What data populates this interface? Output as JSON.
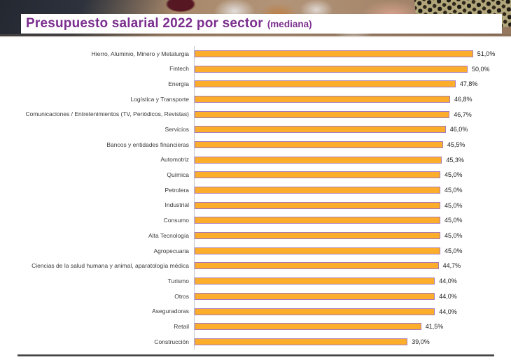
{
  "header": {
    "title": "Presupuesto salarial 2022 por sector",
    "title_suffix": "(mediana)",
    "title_color": "#7B2E8E"
  },
  "chart_data": {
    "type": "bar",
    "orientation": "horizontal",
    "title": "Presupuesto salarial 2022 por sector (mediana)",
    "value_unit": "%",
    "decimal_separator": ",",
    "xlim": [
      0,
      58
    ],
    "grid": false,
    "legend": false,
    "bar_fill_color": "#FBAD2B",
    "bar_border_color": "#A77AB5",
    "categories": [
      "Hierro, Aluminio, Minero y Metalurgia",
      "Fintech",
      "Energía",
      "Logística y Transporte",
      "Comunicaciones / Entretenimientos (TV, Periódicos, Revistas)",
      "Servicios",
      "Bancos y entidades financieras",
      "Automotriz",
      "Química",
      "Petrolera",
      "Industrial",
      "Consumo",
      "Alta Tecnología",
      "Agropecuaria",
      "Ciencias de la salud humana y animal, aparatología médica",
      "Turismo",
      "Otros",
      "Aseguradoras",
      "Retail",
      "Construcción"
    ],
    "values": [
      51.0,
      50.0,
      47.8,
      46.8,
      46.7,
      46.0,
      45.5,
      45.3,
      45.0,
      45.0,
      45.0,
      45.0,
      45.0,
      45.0,
      44.7,
      44.0,
      44.0,
      44.0,
      41.5,
      39.0
    ],
    "value_labels": [
      "51,0%",
      "50,0%",
      "47,8%",
      "46,8%",
      "46,7%",
      "46,0%",
      "45,5%",
      "45,3%",
      "45,0%",
      "45,0%",
      "45,0%",
      "45,0%",
      "45,0%",
      "45,0%",
      "44,7%",
      "44,0%",
      "44,0%",
      "44,0%",
      "41,5%",
      "39,0%"
    ]
  }
}
